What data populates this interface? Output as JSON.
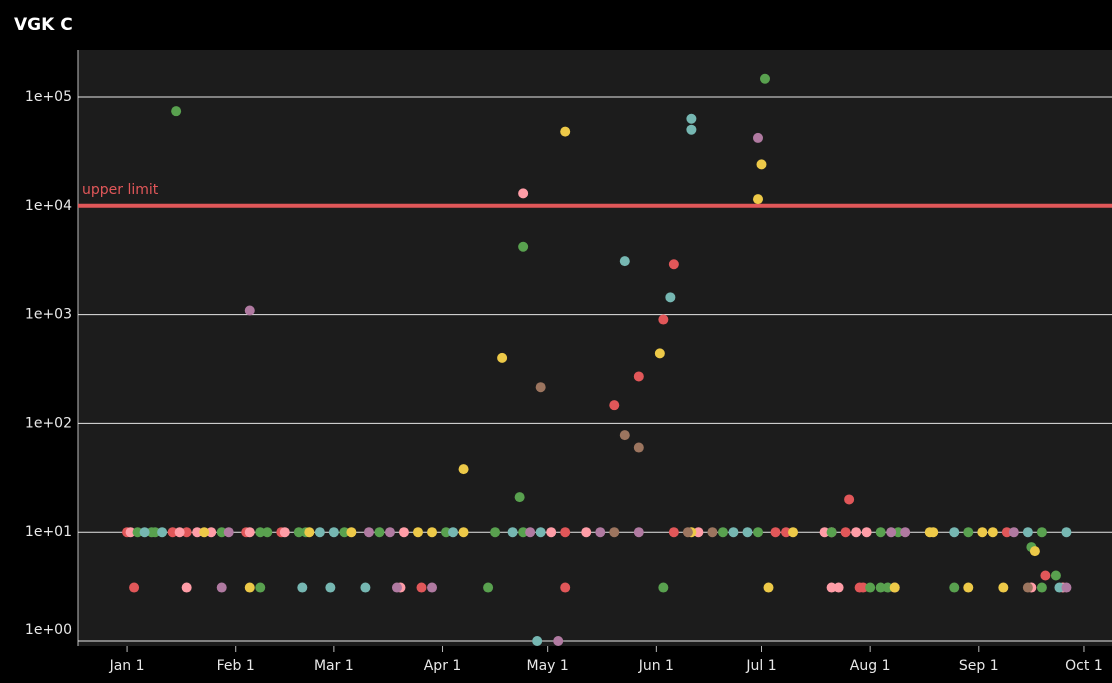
{
  "chart_data": {
    "type": "scatter",
    "title": "VGK C",
    "log_y": true,
    "grid": true,
    "xlim": [
      -14,
      281
    ],
    "ylim": [
      0.9,
      270000
    ],
    "xticks": [
      {
        "value": 0,
        "label": "Jan 1"
      },
      {
        "value": 31,
        "label": "Feb 1"
      },
      {
        "value": 59,
        "label": "Mar 1"
      },
      {
        "value": 90,
        "label": "Apr 1"
      },
      {
        "value": 120,
        "label": "May 1"
      },
      {
        "value": 151,
        "label": "Jun 1"
      },
      {
        "value": 181,
        "label": "Jul 1"
      },
      {
        "value": 212,
        "label": "Aug 1"
      },
      {
        "value": 243,
        "label": "Sep 1"
      },
      {
        "value": 273,
        "label": "Oct 1"
      }
    ],
    "yticks": [
      {
        "value": 1,
        "label": "1e+00"
      },
      {
        "value": 10,
        "label": "1e+01"
      },
      {
        "value": 100,
        "label": "1e+02"
      },
      {
        "value": 1000,
        "label": "1e+03"
      },
      {
        "value": 10000,
        "label": "1e+04"
      },
      {
        "value": 100000,
        "label": "1e+05"
      }
    ],
    "reference_line": {
      "value": 10000,
      "label": "upper limit",
      "color": "#e15759"
    },
    "series": [
      {
        "color": "#e15759",
        "x": [
          0,
          13,
          17,
          34,
          44,
          125,
          156,
          185,
          188,
          205,
          251,
          2,
          84,
          125,
          209,
          210,
          156,
          153,
          146,
          139,
          206,
          262
        ],
        "values": [
          10,
          10,
          10,
          10,
          10,
          10,
          10,
          10,
          10,
          10,
          10,
          3.1,
          3.1,
          3.1,
          3.1,
          3.1,
          2900,
          900,
          270,
          147,
          20,
          4
        ]
      },
      {
        "color": "#ff9da7",
        "x": [
          1,
          15,
          20,
          24,
          35,
          45,
          79,
          121,
          131,
          163,
          199,
          201,
          208,
          211,
          17,
          78,
          201,
          203,
          219,
          258,
          267,
          113
        ],
        "values": [
          10,
          10,
          10,
          10,
          10,
          10,
          10,
          10,
          10,
          10,
          10,
          10,
          10,
          10,
          3.1,
          3.1,
          3.1,
          3.1,
          3.1,
          3.1,
          3.1,
          13000
        ]
      },
      {
        "color": "#59a14f",
        "x": [
          3,
          7,
          8,
          27,
          38,
          40,
          49,
          51,
          62,
          72,
          91,
          105,
          113,
          170,
          180,
          201,
          215,
          220,
          240,
          261,
          38,
          103,
          153,
          212,
          215,
          217,
          236,
          261,
          14,
          182,
          113,
          112,
          258,
          265
        ],
        "values": [
          10,
          10,
          10,
          10,
          10,
          10,
          10,
          10,
          10,
          10,
          10,
          10,
          10,
          10,
          10,
          10,
          10,
          10,
          10,
          10,
          3.1,
          3.1,
          3.1,
          3.1,
          3.1,
          3.1,
          3.1,
          3.1,
          74000,
          147000,
          4200,
          21,
          7.3,
          4
        ]
      },
      {
        "color": "#76b7b2",
        "x": [
          5,
          10,
          55,
          59,
          93,
          110,
          118,
          173,
          177,
          236,
          257,
          268,
          50,
          58,
          68,
          266,
          161,
          161,
          142,
          155,
          117
        ],
        "values": [
          10,
          10,
          10,
          10,
          10,
          10,
          10,
          10,
          10,
          10,
          10,
          10,
          3.1,
          3.1,
          3.1,
          3.1,
          63000,
          50000,
          3100,
          1440,
          1
        ]
      },
      {
        "color": "#edc948",
        "x": [
          22,
          52,
          64,
          83,
          87,
          96,
          161,
          190,
          229,
          230,
          244,
          247,
          35,
          183,
          219,
          240,
          250,
          125,
          181,
          180,
          152,
          107,
          96,
          259
        ],
        "values": [
          10,
          10,
          10,
          10,
          10,
          10,
          10,
          10,
          10,
          10,
          10,
          10,
          3.1,
          3.1,
          3.1,
          3.1,
          3.1,
          48000,
          24000,
          11500,
          440,
          400,
          38,
          6.7
        ]
      },
      {
        "color": "#b07aa1",
        "x": [
          29,
          69,
          75,
          115,
          135,
          146,
          218,
          222,
          253,
          27,
          77,
          87,
          268,
          35,
          180,
          123
        ],
        "values": [
          10,
          10,
          10,
          10,
          10,
          10,
          10,
          10,
          10,
          3.1,
          3.1,
          3.1,
          3.1,
          1090,
          42000,
          1
        ]
      },
      {
        "color": "#9c755f",
        "x": [
          139,
          160,
          167,
          257,
          118,
          142,
          146
        ],
        "values": [
          10,
          10,
          10,
          3.1,
          215,
          78,
          60
        ]
      }
    ]
  }
}
